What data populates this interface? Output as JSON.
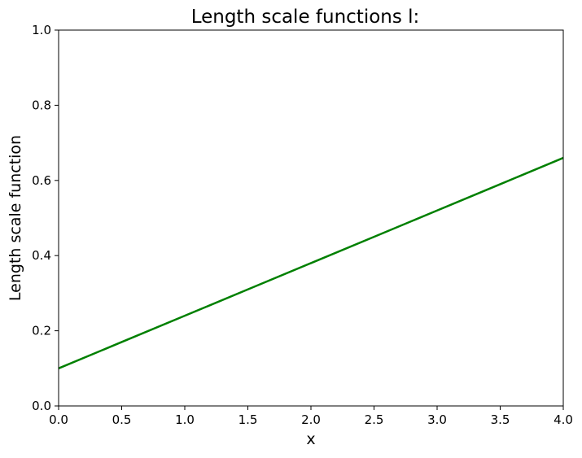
{
  "chart_data": {
    "type": "line",
    "title": "Length scale functions l:",
    "xlabel": "x",
    "ylabel": "Length scale function",
    "xlim": [
      0.0,
      4.0
    ],
    "ylim": [
      0.0,
      1.0
    ],
    "xticks": [
      0.0,
      0.5,
      1.0,
      1.5,
      2.0,
      2.5,
      3.0,
      3.5,
      4.0
    ],
    "xtick_labels": [
      "0.0",
      "0.5",
      "1.0",
      "1.5",
      "2.0",
      "2.5",
      "3.0",
      "3.5",
      "4.0"
    ],
    "yticks": [
      0.0,
      0.2,
      0.4,
      0.6,
      0.8,
      1.0
    ],
    "ytick_labels": [
      "0.0",
      "0.2",
      "0.4",
      "0.6",
      "0.8",
      "1.0"
    ],
    "grid": false,
    "series": [
      {
        "color": "#008000",
        "x": [
          0.0,
          0.5,
          1.0,
          1.5,
          2.0,
          2.5,
          3.0,
          3.5,
          4.0
        ],
        "y": [
          0.1,
          0.17,
          0.24,
          0.31,
          0.38,
          0.45,
          0.52,
          0.59,
          0.66
        ]
      }
    ]
  }
}
